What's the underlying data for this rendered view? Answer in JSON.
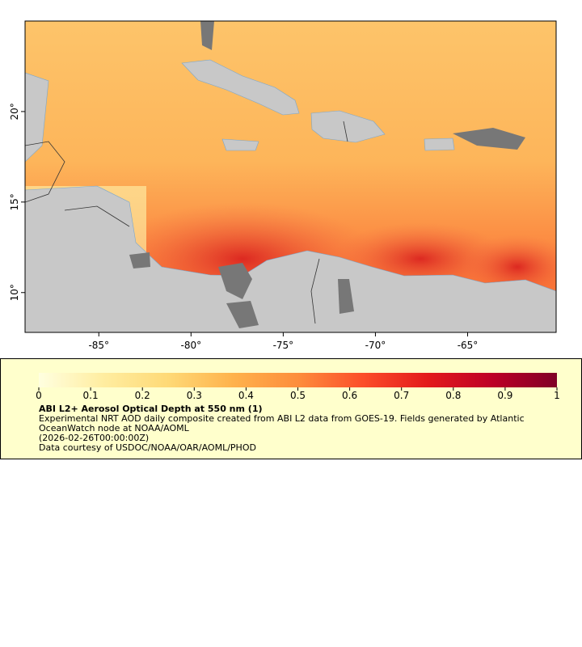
{
  "map": {
    "xlim": [
      -89,
      -60.2
    ],
    "ylim": [
      7.8,
      25
    ],
    "xticks": [
      {
        "value": -85,
        "label": "-85°"
      },
      {
        "value": -80,
        "label": "-80°"
      },
      {
        "value": -75,
        "label": "-75°"
      },
      {
        "value": -70,
        "label": "-70°"
      },
      {
        "value": -65,
        "label": "-65°"
      }
    ],
    "yticks": [
      {
        "value": 10,
        "label": "10°"
      },
      {
        "value": 15,
        "label": "15°"
      },
      {
        "value": 20,
        "label": "20°"
      }
    ]
  },
  "colorbar": {
    "lim": [
      0,
      1
    ],
    "ticks": [
      0,
      0.1,
      0.2,
      0.3,
      0.4,
      0.5,
      0.6,
      0.7,
      0.8,
      0.9,
      1
    ],
    "colormap": [
      "#ffffe0",
      "#ffeda0",
      "#fed976",
      "#feb24c",
      "#fd8d3c",
      "#fc4e2a",
      "#e31a1c",
      "#bd0026",
      "#800026"
    ]
  },
  "legend": {
    "title": "ABI L2+ Aerosol Optical Depth at 550 nm (1)",
    "description": "Experimental NRT AOD daily composite created from ABI L2 data from GOES-19. Fields generated by Atlantic OceanWatch node at NOAA/AOML",
    "time": "(2026-02-26T00:00:00Z)",
    "credit": "Data courtesy of USDOC/NOAA/OAR/AOML/PHOD"
  }
}
